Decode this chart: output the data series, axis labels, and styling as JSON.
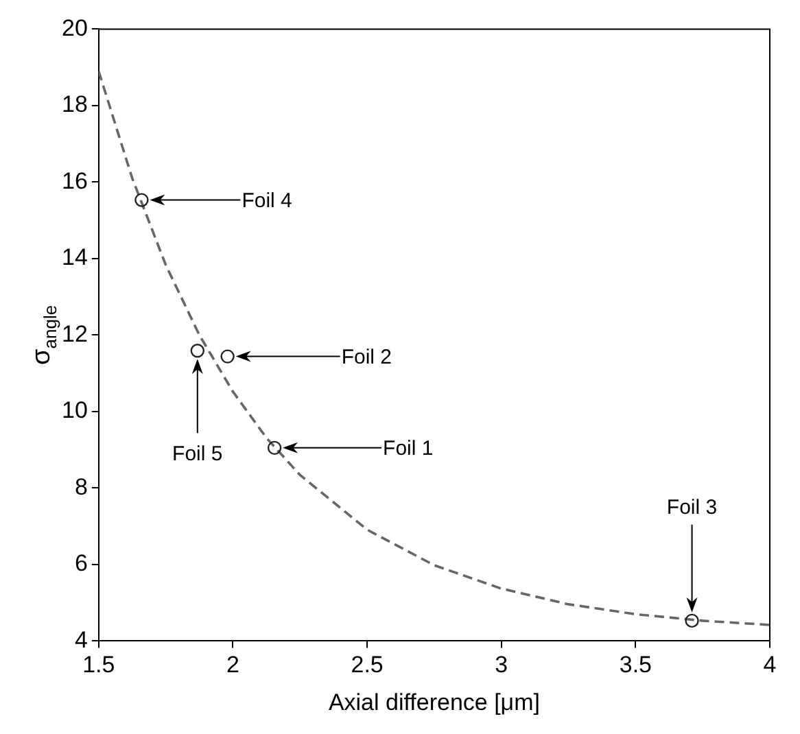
{
  "chart_data": {
    "type": "scatter",
    "xlabel": "Axial difference [μm]",
    "ylabel": "σ$_{angle}$",
    "xlim": [
      1.5,
      4
    ],
    "xticks": [
      1.5,
      2,
      2.5,
      3,
      3.5,
      4
    ],
    "ylim": [
      4,
      20
    ],
    "yticks": [
      4,
      6,
      8,
      10,
      12,
      14,
      16,
      18,
      20
    ],
    "grid": false,
    "legend": false,
    "series": [
      {
        "color": "#222222",
        "marker": "circle",
        "x": [
          1.66,
          1.98,
          2.155,
          1.868,
          3.71
        ],
        "values": [
          15.53,
          11.44,
          9.05,
          11.59,
          4.53
        ]
      },
      {
        "type": "line",
        "color": "#666666",
        "line_style": "dashed",
        "marker": "none",
        "x": [
          1.5,
          1.625,
          1.75,
          1.875,
          2.0,
          2.125,
          2.25,
          2.5,
          2.75,
          3.0,
          3.25,
          3.5,
          3.75,
          4.0
        ],
        "values": [
          18.9,
          16.1,
          13.83,
          12.0,
          10.52,
          9.31,
          8.34,
          6.91,
          5.98,
          5.37,
          4.96,
          4.7,
          4.53,
          4.42
        ]
      }
    ],
    "annotations": [
      "Foil 4",
      "Foil 2",
      "Foil 1",
      "Foil 5",
      "Foil 3"
    ]
  }
}
